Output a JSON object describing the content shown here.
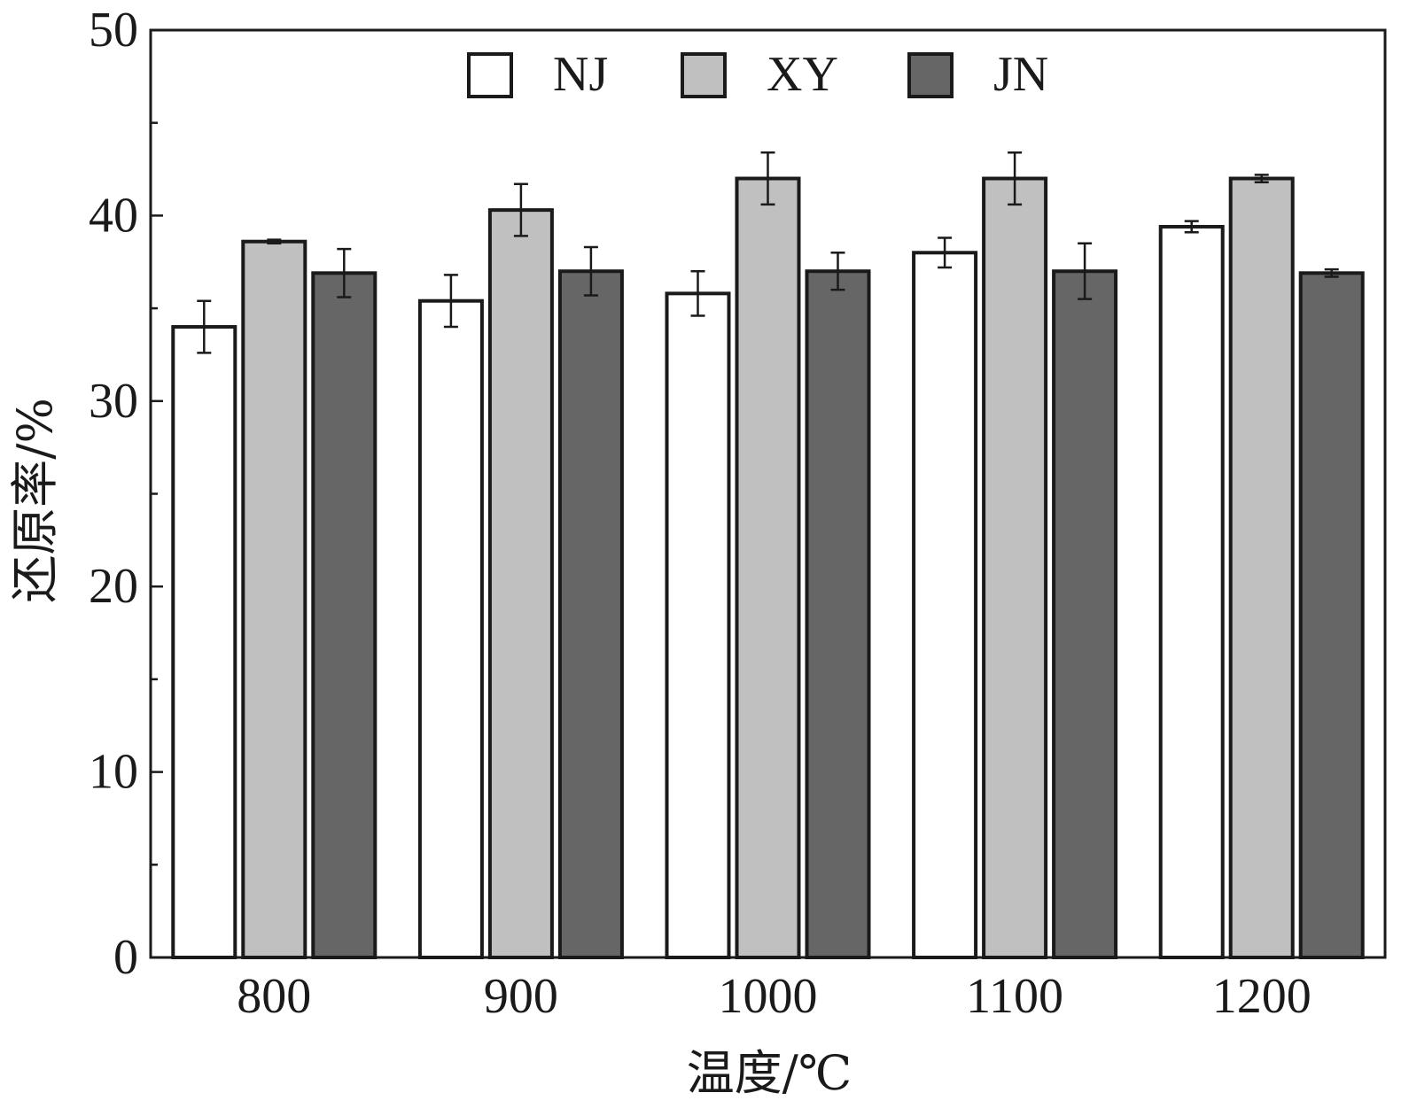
{
  "chart_data": {
    "type": "bar",
    "categories": [
      "800",
      "900",
      "1000",
      "1100",
      "1200"
    ],
    "series": [
      {
        "name": "NJ",
        "color": "#ffffff",
        "values": [
          34.0,
          35.4,
          35.8,
          38.0,
          39.4
        ],
        "errors": [
          1.4,
          1.4,
          1.2,
          0.8,
          0.3
        ]
      },
      {
        "name": "XY",
        "color": "#c0c0c0",
        "values": [
          38.6,
          40.3,
          42.0,
          42.0,
          42.0
        ],
        "errors": [
          0.1,
          1.4,
          1.4,
          1.4,
          0.2
        ]
      },
      {
        "name": "JN",
        "color": "#666666",
        "values": [
          36.9,
          37.0,
          37.0,
          37.0,
          36.9
        ],
        "errors": [
          1.3,
          1.3,
          1.0,
          1.5,
          0.2
        ]
      }
    ],
    "xlabel": "温度/℃",
    "ylabel": "还原率/%",
    "ylim": [
      0,
      50
    ],
    "yticks": [
      0,
      10,
      20,
      30,
      40,
      50
    ],
    "grid": false,
    "legend": "top-center"
  }
}
